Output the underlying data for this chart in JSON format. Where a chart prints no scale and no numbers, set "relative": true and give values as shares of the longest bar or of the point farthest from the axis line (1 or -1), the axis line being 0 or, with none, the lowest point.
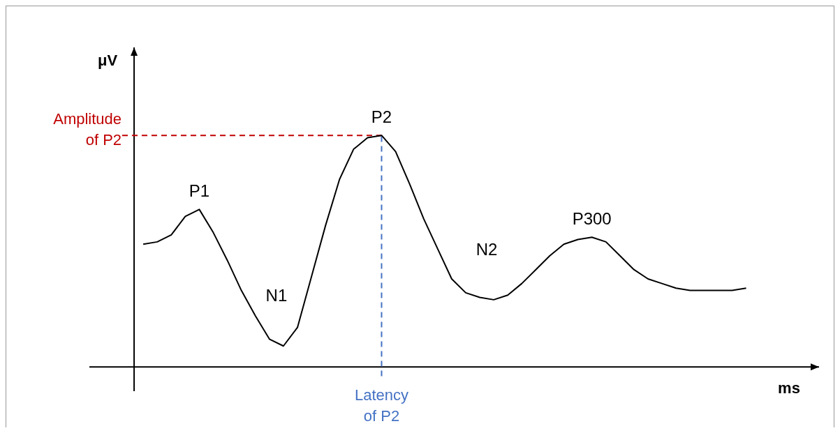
{
  "chart_data": {
    "type": "line",
    "relative": true,
    "xlabel": "ms",
    "ylabel": "μV",
    "line_style": "solid",
    "categories": [
      null,
      null,
      null,
      null,
      null,
      null,
      null,
      null,
      null,
      null,
      null,
      null,
      null,
      null,
      null,
      null,
      null,
      null,
      null,
      null,
      null,
      null,
      null,
      null,
      null,
      null,
      null,
      null,
      null,
      null,
      null,
      null,
      null,
      null,
      null,
      null,
      null,
      null,
      null,
      null,
      null,
      null,
      null,
      null
    ],
    "series": [
      {
        "color": "#000000",
        "values": [
          0.53,
          0.54,
          0.57,
          0.65,
          0.68,
          0.58,
          0.46,
          0.33,
          0.22,
          0.12,
          0.09,
          0.17,
          0.39,
          0.61,
          0.81,
          0.94,
          0.99,
          1,
          0.93,
          0.79,
          0.64,
          0.51,
          0.38,
          0.32,
          0.3,
          0.29,
          0.31,
          0.36,
          0.42,
          0.48,
          0.53,
          0.55,
          0.56,
          0.54,
          0.48,
          0.42,
          0.38,
          0.36,
          0.34,
          0.33,
          0.33,
          0.33,
          0.33,
          0.34
        ]
      }
    ],
    "annotations": [
      "P1",
      "N1",
      "P2",
      "N2",
      "P300",
      "Latency\nof P2"
    ],
    "ref_lines": [
      {
        "axis": "y",
        "value": 1,
        "label": "Amplitude\nof P2",
        "color": "#c00000",
        "line_style": "dashed"
      }
    ]
  }
}
